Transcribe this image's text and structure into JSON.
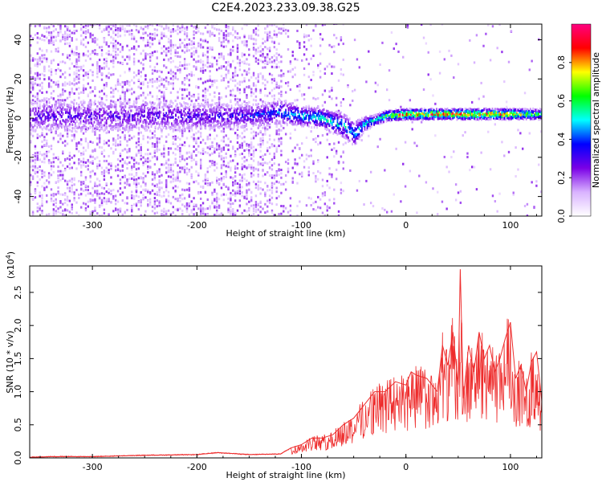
{
  "title": "C2E4.2023.233.09.38.G25",
  "chart_data": [
    {
      "type": "heatmap",
      "xlabel": "Height of straight line (km)",
      "ylabel": "Frequency (Hz)",
      "xlim": [
        -360,
        130
      ],
      "ylim": [
        -50,
        48
      ],
      "xticks": [
        -300,
        -200,
        -100,
        0,
        100
      ],
      "yticks": [
        -40,
        -20,
        0,
        20,
        40
      ],
      "colorbar": {
        "label": "Normalized spectral amplitude",
        "range": [
          0.0,
          1.0
        ],
        "ticks": [
          0.0,
          0.2,
          0.4,
          0.6,
          0.8
        ],
        "colors": [
          "#ffffff",
          "#d9b3ff",
          "#7a00e6",
          "#0000ff",
          "#00ffff",
          "#00ff00",
          "#ffff00",
          "#ff0000",
          "#ff0080"
        ]
      },
      "band_profile": {
        "x": [
          -360,
          -300,
          -250,
          -200,
          -150,
          -120,
          -100,
          -80,
          -60,
          -50,
          -40,
          -30,
          -20,
          0,
          50,
          100,
          130
        ],
        "center_hz": [
          1,
          1,
          1,
          1,
          1,
          3,
          1,
          0,
          -4,
          -8,
          -3,
          -1,
          1,
          2,
          2,
          2,
          2
        ],
        "halfwidth_hz": [
          7,
          7,
          7,
          6,
          5,
          5,
          4,
          4,
          5,
          5,
          3,
          2,
          2,
          2,
          2,
          2,
          2
        ],
        "peak_amplitude": [
          0.3,
          0.3,
          0.3,
          0.32,
          0.35,
          0.45,
          0.5,
          0.55,
          0.5,
          0.5,
          0.5,
          0.55,
          0.75,
          0.85,
          0.9,
          0.85,
          0.6
        ]
      },
      "grid": false
    },
    {
      "type": "line",
      "xlabel": "Height of straight line (km)",
      "ylabel": "SNR (10 * v/v)",
      "yscale_label": "(x10",
      "yscale_exponent": "4",
      "xlim": [
        -360,
        130
      ],
      "ylim": [
        0,
        2.9
      ],
      "xticks": [
        -300,
        -200,
        -100,
        0,
        100
      ],
      "yticks": [
        0.0,
        0.5,
        1.0,
        1.5,
        2.0,
        2.5
      ],
      "ytick_labels": [
        "0.0",
        "0.5",
        "1.0",
        "1.5",
        "2.0",
        "2.5"
      ],
      "series": [
        {
          "color": "#ee2c2c",
          "x": [
            -360,
            -340,
            -300,
            -250,
            -200,
            -180,
            -150,
            -120,
            -110,
            -100,
            -90,
            -80,
            -70,
            -60,
            -50,
            -40,
            -30,
            -20,
            -10,
            0,
            5,
            10,
            20,
            30,
            35,
            40,
            45,
            50,
            52,
            55,
            60,
            65,
            70,
            75,
            80,
            85,
            90,
            95,
            100,
            105,
            110,
            115,
            120,
            125,
            130
          ],
          "y": [
            0.01,
            0.02,
            0.02,
            0.04,
            0.05,
            0.08,
            0.05,
            0.06,
            0.15,
            0.2,
            0.3,
            0.3,
            0.35,
            0.5,
            0.6,
            0.8,
            1.0,
            1.0,
            1.15,
            1.1,
            1.3,
            1.25,
            1.2,
            1.0,
            1.7,
            1.4,
            1.9,
            1.1,
            2.85,
            0.9,
            1.7,
            1.3,
            1.9,
            1.5,
            1.7,
            1.3,
            1.5,
            1.8,
            2.05,
            1.2,
            1.4,
            1.0,
            1.45,
            1.6,
            0.85
          ]
        }
      ],
      "grid": false
    }
  ]
}
